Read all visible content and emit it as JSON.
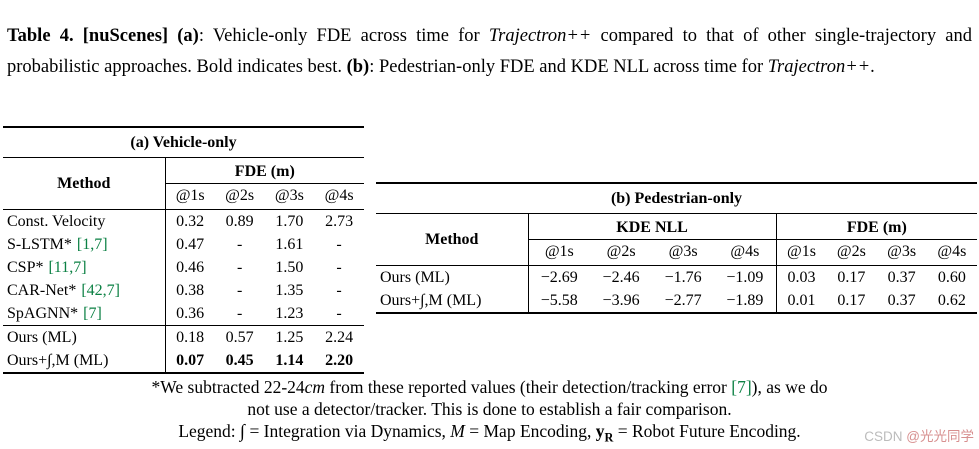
{
  "caption": {
    "t1": "Table 4. [nuScenes] ",
    "t2": "(a)",
    "t3": ": Vehicle-only FDE across time for ",
    "t4": "Trajectron++",
    "t5": " compared to that of other single-trajectory and probabilistic approaches. Bold indicates best. ",
    "t6": "(b)",
    "t7": ": Pedestrian-only FDE and KDE NLL across time for ",
    "t8": "Trajectron++",
    "t9": "."
  },
  "table_a": {
    "title": "(a) Vehicle-only",
    "method_header": "Method",
    "group_header": "FDE (m)",
    "time_headers": [
      "@1s",
      "@2s",
      "@3s",
      "@4s"
    ],
    "rows": [
      {
        "method": "Const. Velocity",
        "cite": "",
        "values": [
          "0.32",
          "0.89",
          "1.70",
          "2.73"
        ]
      },
      {
        "method": "S-LSTM*",
        "cite": "[1,7]",
        "values": [
          "0.47",
          "-",
          "1.61",
          "-"
        ]
      },
      {
        "method": "CSP*",
        "cite": "[11,7]",
        "values": [
          "0.46",
          "-",
          "1.50",
          "-"
        ]
      },
      {
        "method": "CAR-Net*",
        "cite": "[42,7]",
        "values": [
          "0.38",
          "-",
          "1.35",
          "-"
        ]
      },
      {
        "method": "SpAGNN*",
        "cite": "[7]",
        "values": [
          "0.36",
          "-",
          "1.23",
          "-"
        ]
      }
    ],
    "ours_rows": [
      {
        "method": "Ours (ML)",
        "values": [
          "0.18",
          "0.57",
          "1.25",
          "2.24"
        ]
      },
      {
        "method": "Ours+∫,M (ML)",
        "values": [
          "0.07",
          "0.45",
          "1.14",
          "2.20"
        ]
      }
    ]
  },
  "table_b": {
    "title": "(b) Pedestrian-only",
    "method_header": "Method",
    "groups": [
      {
        "label": "KDE NLL",
        "time_headers": [
          "@1s",
          "@2s",
          "@3s",
          "@4s"
        ]
      },
      {
        "label": "FDE (m)",
        "time_headers": [
          "@1s",
          "@2s",
          "@3s",
          "@4s"
        ]
      }
    ],
    "rows": [
      {
        "method": "Ours (ML)",
        "kde": [
          "−2.69",
          "−2.46",
          "−1.76",
          "−1.09"
        ],
        "fde": [
          "0.03",
          "0.17",
          "0.37",
          "0.60"
        ]
      },
      {
        "method": "Ours+∫,M (ML)",
        "kde": [
          "−5.58",
          "−3.96",
          "−2.77",
          "−1.89"
        ],
        "fde": [
          "0.01",
          "0.17",
          "0.37",
          "0.62"
        ]
      }
    ]
  },
  "footnote": {
    "line1_pre": "*We subtracted 22-24",
    "line1_unit": "cm",
    "line1_mid": " from these reported values (their detection/tracking error ",
    "line1_cite": "[7]",
    "line1_post": "), as we do",
    "line2": "not use a detector/tracker. This is done to establish a fair comparison."
  },
  "legend": {
    "label": "Legend: ",
    "integral": "∫",
    "integral_def": " = Integration via Dynamics, ",
    "map": "M",
    "map_def": " = Map Encoding, ",
    "robot": "y",
    "robot_sub": "R",
    "robot_def": " = Robot Future Encoding."
  },
  "watermark": {
    "brand": "CSDN ",
    "user": "@光光同学"
  },
  "colors": {
    "citation_green": "#0b8043",
    "watermark_gray": "#bcbcbc",
    "watermark_red": "#d78f8f"
  }
}
